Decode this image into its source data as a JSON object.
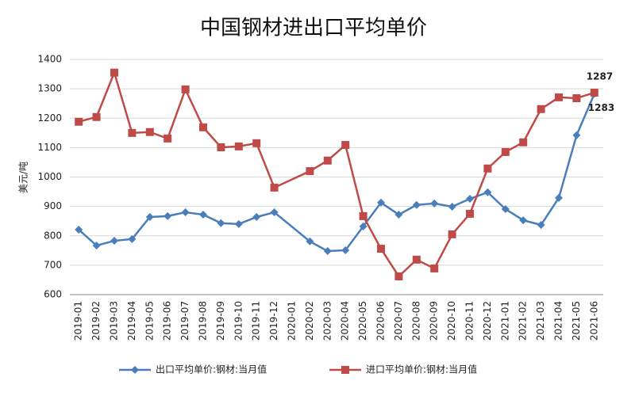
{
  "chart_data": {
    "type": "line",
    "title": "中国钢材进出口平均单价",
    "y_label": "美元/吨",
    "categories": [
      "2019-01",
      "2019-02",
      "2019-03",
      "2019-04",
      "2019-05",
      "2019-06",
      "2019-07",
      "2019-08",
      "2019-09",
      "2019-10",
      "2019-11",
      "2019-12",
      "2020-01",
      "2020-02",
      "2020-03",
      "2020-04",
      "2020-05",
      "2020-06",
      "2020-07",
      "2020-08",
      "2020-09",
      "2020-10",
      "2020-11",
      "2020-12",
      "2021-01",
      "2021-02",
      "2021-03",
      "2021-04",
      "2021-05",
      "2021-06"
    ],
    "series": [
      {
        "name": "出口平均单价:钢材:当月值",
        "color": "#4a7ebb",
        "marker": "diamond",
        "values": [
          821,
          767,
          783,
          789,
          864,
          867,
          880,
          872,
          843,
          840,
          864,
          880,
          null,
          781,
          748,
          751,
          832,
          913,
          872,
          905,
          910,
          899,
          926,
          948,
          891,
          853,
          837,
          929,
          1142,
          1283
        ]
      },
      {
        "name": "进口平均单价:钢材:当月值",
        "color": "#be4b48",
        "marker": "square",
        "values": [
          1188,
          1204,
          1355,
          1150,
          1153,
          1131,
          1298,
          1169,
          1101,
          1104,
          1115,
          964,
          null,
          1020,
          1056,
          1109,
          867,
          756,
          662,
          719,
          689,
          805,
          875,
          1029,
          1085,
          1118,
          1231,
          1271,
          1268,
          1287
        ]
      }
    ],
    "ylim": [
      600,
      1400
    ],
    "yticks": [
      600,
      700,
      800,
      900,
      1000,
      1100,
      1200,
      1300,
      1400
    ],
    "grid": true,
    "legend": "bottom"
  }
}
